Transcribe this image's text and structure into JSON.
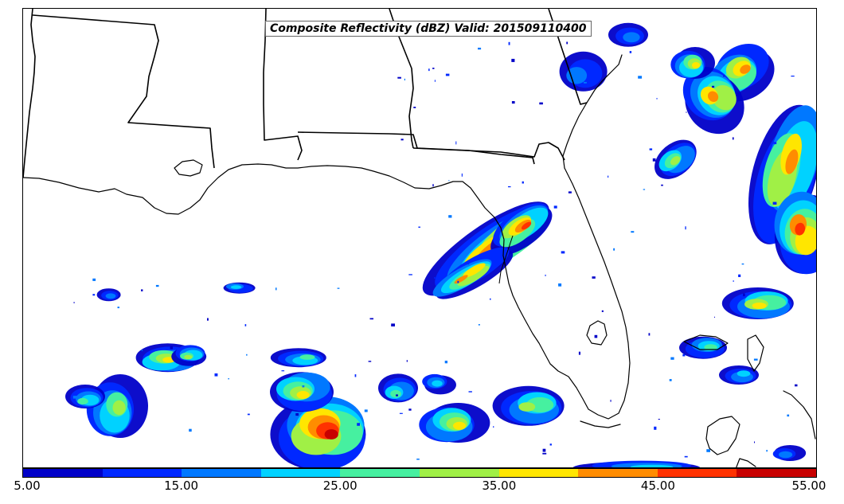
{
  "map": {
    "title": "Composite Reflectivity (dBZ) Valid: 201509110400",
    "variable": "Composite Reflectivity",
    "units": "dBZ",
    "valid_time": "201509110400"
  },
  "colorbar": {
    "colors": [
      "#0000c8",
      "#0028ff",
      "#0078ff",
      "#00d2ff",
      "#46f0a0",
      "#a0f046",
      "#ffe600",
      "#ff8c00",
      "#ff3200",
      "#c80000"
    ],
    "tick_labels": [
      "5.00",
      "15.00",
      "25.00",
      "35.00",
      "45.00",
      "55.00"
    ],
    "min": 5,
    "max": 55,
    "step": 5
  }
}
